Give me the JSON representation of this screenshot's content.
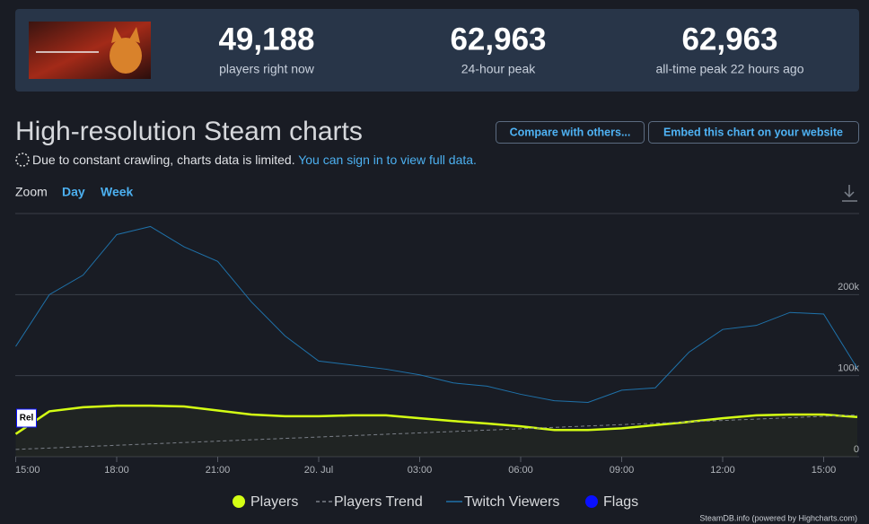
{
  "header": {
    "stats": [
      {
        "value": "49,188",
        "label": "players right now"
      },
      {
        "value": "62,963",
        "label": "24-hour peak"
      },
      {
        "value": "62,963",
        "label": "all-time peak 22 hours ago"
      }
    ]
  },
  "title": "High-resolution Steam charts",
  "buttons": [
    "Compare with others...",
    "Embed this chart on your website"
  ],
  "notice": {
    "text": "Due to constant crawling, charts data is limited.",
    "link": "You can sign in to view full data."
  },
  "zoom": {
    "label": "Zoom",
    "options": [
      "Day",
      "Week"
    ]
  },
  "chart": {
    "type": "line",
    "categories": [
      "15:00",
      null,
      null,
      "18:00",
      null,
      null,
      "21:00",
      null,
      null,
      "20. Jul",
      null,
      null,
      "03:00",
      null,
      null,
      "06:00",
      null,
      null,
      "09:00",
      null,
      null,
      "12:00",
      null,
      null,
      "15:00",
      null
    ],
    "series": [
      {
        "name": "Players",
        "color": "#d4ff14",
        "values": [
          28000,
          56000,
          61000,
          62900,
          62900,
          62000,
          57000,
          52000,
          50000,
          50000,
          51000,
          51000,
          47500,
          44000,
          41000,
          37500,
          33000,
          33000,
          35000,
          39000,
          43000,
          47500,
          51000,
          52000,
          52000,
          49000
        ]
      },
      {
        "name": "Players Trend",
        "color": "#7a7f88",
        "dashed": true,
        "values": [
          9000,
          10700,
          12400,
          14100,
          15800,
          17500,
          19200,
          20900,
          22600,
          24300,
          26000,
          27700,
          29400,
          31100,
          32800,
          34500,
          36200,
          37900,
          39600,
          41300,
          43000,
          44700,
          46400,
          48100,
          49800,
          51500
        ]
      },
      {
        "name": "Twitch Viewers",
        "color": "#1f72aa",
        "values": [
          136000,
          200000,
          224000,
          274000,
          284000,
          259000,
          241000,
          191000,
          149000,
          118000,
          113000,
          108000,
          101000,
          91000,
          87000,
          77000,
          69000,
          67000,
          82000,
          85000,
          129000,
          157000,
          162000,
          178000,
          176000,
          109000
        ]
      },
      {
        "name": "Flags",
        "color": "#0a10ff",
        "values": [
          null,
          null,
          null,
          null,
          null,
          null,
          null,
          null,
          null,
          null,
          null,
          null,
          null,
          null,
          null,
          null,
          null,
          null,
          null,
          null,
          null,
          null,
          null,
          null,
          null,
          null
        ]
      }
    ],
    "flags": [
      {
        "index": 0,
        "label": "Rel"
      }
    ],
    "ylim": [
      0,
      300000
    ],
    "yticks": [
      0,
      {
        "value": 100000,
        "label": "100k"
      },
      {
        "value": 200000,
        "label": "200k"
      }
    ],
    "grid": true
  },
  "credit": "SteamDB.info (powered by Highcharts.com)"
}
